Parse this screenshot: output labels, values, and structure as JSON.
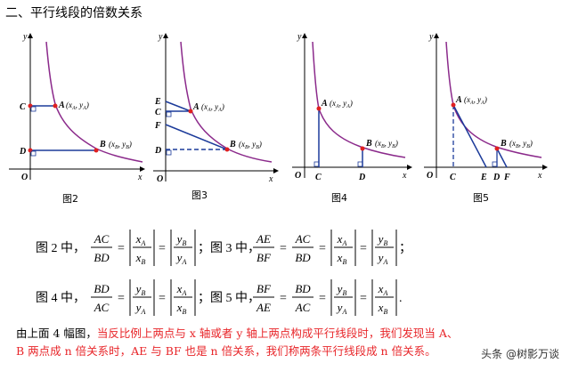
{
  "heading": "二、平行线段的倍数关系",
  "figures": [
    {
      "caption": "图2",
      "labels": [
        "y",
        "x",
        "O",
        "C",
        "D",
        "A",
        "(x",
        "A",
        ",",
        "y",
        "A",
        ")",
        "B",
        "(x",
        "B",
        ",",
        "y",
        "B",
        ")"
      ]
    },
    {
      "caption": "图3",
      "labels": [
        "y",
        "x",
        "O",
        "E",
        "C",
        "F",
        "D",
        "A",
        "B"
      ]
    },
    {
      "caption": "图4",
      "labels": [
        "y",
        "x",
        "O",
        "C",
        "D",
        "A",
        "B"
      ]
    },
    {
      "caption": "图5",
      "labels": [
        "y",
        "x",
        "O",
        "C",
        "E",
        "D",
        "F",
        "A",
        "B"
      ]
    }
  ],
  "formulas": {
    "line1": {
      "f2_prefix": "图 2 中，",
      "f3_prefix": "；图 3 中，"
    },
    "line2": {
      "f4_prefix": "图 4 中，",
      "f5_prefix": "；图 5 中，"
    }
  },
  "paragraph": {
    "black_start": "由上面 4 幅图，",
    "red1": "当反比例上两点与 x 轴或者 y 轴上两点构成平行线段时，我们发现当 A、",
    "red2": "B 两点成 n 倍关系时，AE 与 BF 也是 n 倍关系，我们称两条平行线段成 n 倍关系。"
  },
  "watermark": "头条 @树影万谈"
}
